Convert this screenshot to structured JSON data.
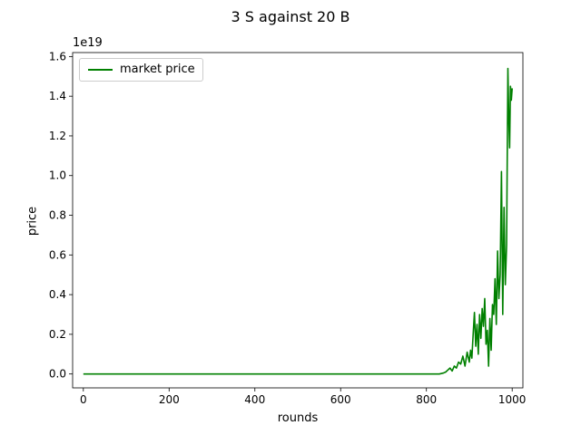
{
  "chart_data": {
    "type": "line",
    "title": "3 S against 20 B",
    "xlabel": "rounds",
    "ylabel": "price",
    "y_offset_label": "1e19",
    "xlim": [
      -25,
      1025
    ],
    "ylim": [
      -0.07,
      1.62
    ],
    "y_scale_multiplier": 1e+19,
    "xticks": [
      0,
      200,
      400,
      600,
      800,
      1000
    ],
    "yticks": [
      "0.0",
      "0.2",
      "0.4",
      "0.6",
      "0.8",
      "1.0",
      "1.2",
      "1.4",
      "1.6"
    ],
    "grid": false,
    "legend_position": "upper-left",
    "series": [
      {
        "name": "market price",
        "color": "#008000",
        "x": [
          0,
          100,
          200,
          300,
          400,
          500,
          600,
          700,
          800,
          830,
          840,
          845,
          850,
          855,
          860,
          865,
          870,
          875,
          880,
          885,
          890,
          895,
          900,
          903,
          906,
          909,
          912,
          915,
          918,
          921,
          924,
          927,
          930,
          933,
          936,
          939,
          942,
          945,
          948,
          951,
          954,
          957,
          960,
          963,
          966,
          969,
          972,
          975,
          978,
          981,
          984,
          987,
          990,
          992,
          994,
          996,
          998,
          1000
        ],
        "y": [
          0.0,
          0.0,
          0.0,
          0.0,
          0.0,
          0.0,
          0.0,
          0.0,
          0.0,
          0.0,
          0.005,
          0.01,
          0.02,
          0.03,
          0.015,
          0.04,
          0.03,
          0.06,
          0.05,
          0.09,
          0.04,
          0.11,
          0.06,
          0.12,
          0.08,
          0.2,
          0.31,
          0.14,
          0.25,
          0.1,
          0.3,
          0.18,
          0.33,
          0.24,
          0.38,
          0.15,
          0.22,
          0.04,
          0.28,
          0.12,
          0.35,
          0.3,
          0.48,
          0.25,
          0.62,
          0.38,
          0.5,
          1.02,
          0.3,
          0.84,
          0.45,
          0.65,
          1.54,
          1.3,
          1.14,
          1.45,
          1.38,
          1.44
        ]
      }
    ]
  }
}
